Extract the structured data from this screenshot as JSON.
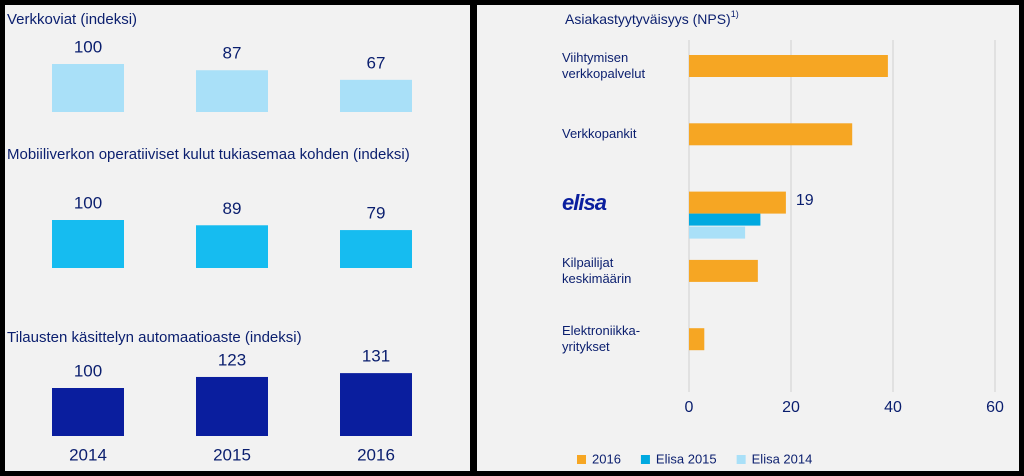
{
  "chart_data": [
    {
      "type": "bar",
      "title": "Verkkoviat (indeksi)",
      "values": [
        100,
        87,
        67
      ],
      "color": "#a9e0f8"
    },
    {
      "type": "bar",
      "title": "Mobiiliverkon operatiiviset kulut tukiasemaa kohden (indeksi)",
      "values": [
        100,
        89,
        79
      ],
      "color": "#16bcf0"
    },
    {
      "type": "bar",
      "title": "Tilausten käsittelyn automaatioaste (indeksi)",
      "categories": [
        "2014",
        "2015",
        "2016"
      ],
      "values": [
        100,
        123,
        131
      ],
      "color": "#0a1e9e"
    },
    {
      "type": "hbar",
      "title": "Asiakastyytyväisyys (NPS)",
      "title_note": "1)",
      "categories": [
        "Viihtymisen verkkopalvelut",
        "Verkkopankit",
        "elisa",
        "Kilpailijat keskimäärin",
        "Elektroniikka-yritykset"
      ],
      "series": [
        {
          "name": "2016",
          "color": "#f6a623",
          "values": [
            39,
            32,
            19,
            13.5,
            3
          ],
          "value_labels": [
            null,
            null,
            "19",
            null,
            null
          ]
        },
        {
          "name": "Elisa 2015",
          "color": "#00a9e0",
          "values": [
            null,
            null,
            14,
            null,
            null
          ]
        },
        {
          "name": "Elisa 2014",
          "color": "#a9e0f8",
          "values": [
            null,
            null,
            11,
            null,
            null
          ]
        }
      ],
      "xlim": [
        0,
        60
      ],
      "xticks": [
        0,
        20,
        40,
        60
      ],
      "grid": true,
      "legend": "bottom"
    }
  ]
}
